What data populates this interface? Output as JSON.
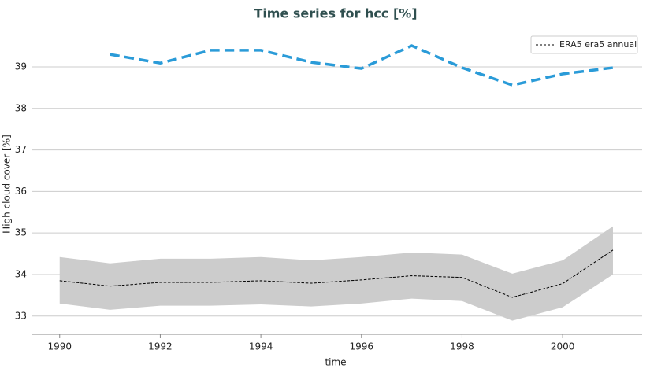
{
  "chart_data": {
    "type": "line",
    "title": "Time series for hcc [%]",
    "xlabel": "time",
    "ylabel": "High cloud cover [%]",
    "x": [
      1990,
      1991,
      1992,
      1993,
      1994,
      1995,
      1996,
      1997,
      1998,
      1999,
      2000,
      2001
    ],
    "series": [
      {
        "name": "ERA5 era5 annual",
        "color": "#000000",
        "linestyle": "dashed",
        "width": 1,
        "values": [
          33.85,
          33.72,
          33.81,
          33.81,
          33.85,
          33.79,
          33.87,
          33.97,
          33.93,
          33.45,
          33.78,
          34.59
        ]
      },
      {
        "color": "#2a9bd8",
        "linestyle": "dashed",
        "width": 3.5,
        "values": [
          null,
          39.3,
          39.09,
          39.4,
          39.4,
          39.11,
          38.96,
          39.51,
          38.98,
          38.56,
          38.83,
          38.98
        ]
      }
    ],
    "band": {
      "color": "#cccccc",
      "upper": [
        34.42,
        34.27,
        34.38,
        34.38,
        34.42,
        34.34,
        34.42,
        34.53,
        34.48,
        34.02,
        34.34,
        35.16
      ],
      "lower": [
        33.3,
        33.15,
        33.25,
        33.25,
        33.28,
        33.23,
        33.3,
        33.42,
        33.36,
        32.89,
        33.21,
        34.0
      ]
    },
    "xlim": [
      1989.44,
      2001.58
    ],
    "xticks": [
      1990,
      1992,
      1994,
      1996,
      1998,
      2000
    ],
    "ylim": [
      32.56,
      39.89
    ],
    "yticks": [
      33,
      34,
      35,
      36,
      37,
      38,
      39
    ],
    "grid": "y",
    "legend": "upper right"
  }
}
